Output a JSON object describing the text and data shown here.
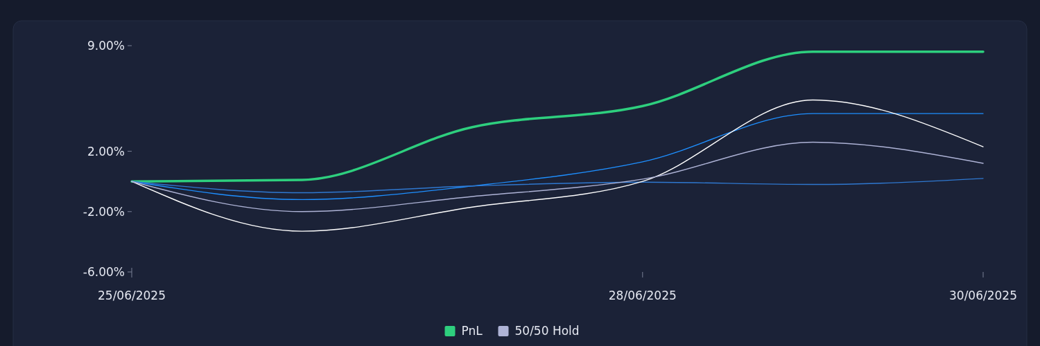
{
  "chart_data": {
    "type": "line",
    "x": [
      "2025-06-25",
      "2025-06-26",
      "2025-06-27",
      "2025-06-28",
      "2025-06-29",
      "2025-06-30"
    ],
    "xlim": [
      "2025-06-25",
      "2025-06-30"
    ],
    "xticks": [
      {
        "value": "2025-06-25",
        "label": "25/06/2025"
      },
      {
        "value": "2025-06-28",
        "label": "28/06/2025"
      },
      {
        "value": "2025-06-30",
        "label": "30/06/2025"
      }
    ],
    "ylim": [
      -6,
      9
    ],
    "yticks": [
      {
        "value": 9,
        "label": "9.00%"
      },
      {
        "value": 2,
        "label": "2.00%"
      },
      {
        "value": -2,
        "label": "-2.00%"
      },
      {
        "value": -6,
        "label": "-6.00%"
      }
    ],
    "series": [
      {
        "name": "PnL",
        "color": "#2ecf7e",
        "values": [
          0,
          0.1,
          3.6,
          5.0,
          8.6,
          8.6
        ]
      },
      {
        "color": "#1e8fff",
        "values": [
          0,
          -1.2,
          -0.3,
          1.3,
          4.5,
          4.5
        ]
      },
      {
        "color": "#2f78d0",
        "values": [
          0,
          -0.75,
          -0.3,
          -0.05,
          -0.2,
          0.2
        ]
      },
      {
        "color": "#ffffff",
        "values": [
          0,
          -3.3,
          -1.7,
          0,
          5.4,
          2.3
        ]
      },
      {
        "name": "50/50 Hold",
        "color": "#aeb3d6",
        "values": [
          0,
          -2.0,
          -1.0,
          0.15,
          2.6,
          1.2
        ]
      }
    ],
    "grid": false,
    "legend": "bottom",
    "marker": "none",
    "line_style": "solid"
  }
}
